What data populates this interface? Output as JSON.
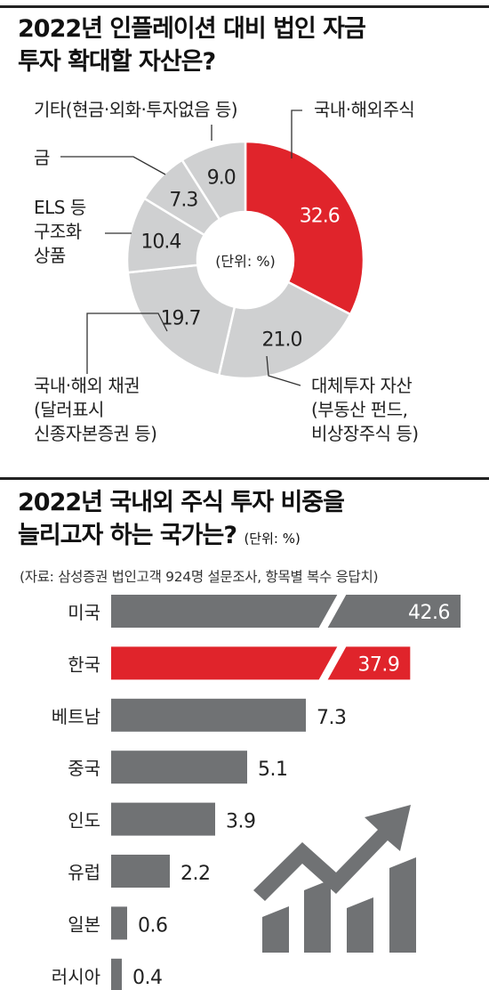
{
  "chart_data": [
    {
      "type": "pie",
      "title": "2022년 인플레이션 대비 법인 자금 투자 확대할 자산은?",
      "unit": "(단위: %)",
      "slices": [
        {
          "label": "국내·해외주식",
          "value": 32.6,
          "color": "#e0242b",
          "value_label": "32.6"
        },
        {
          "label": "대체투자 자산 (부동산 펀드, 비상장주식 등)",
          "value": 21.0,
          "color": "#cfd0d1",
          "value_label": "21.0"
        },
        {
          "label": "국내·해외 채권 (달러표시 신종자본증권 등)",
          "value": 19.7,
          "color": "#cfd0d1",
          "value_label": "19.7"
        },
        {
          "label": "ELS 등 구조화 상품",
          "value": 10.4,
          "color": "#cfd0d1",
          "value_label": "10.4"
        },
        {
          "label": "금",
          "value": 7.3,
          "color": "#cfd0d1",
          "value_label": "7.3"
        },
        {
          "label": "기타(현금·외화·투자없음 등)",
          "value": 9.0,
          "color": "#cfd0d1",
          "value_label": "9.0"
        }
      ]
    },
    {
      "type": "bar",
      "orientation": "horizontal",
      "title": "2022년 국내외 주식 투자 비중을 늘리고자 하는 국가는?",
      "unit": "(단위: %)",
      "source": "(자료: 삼성증권 법인고객 924명 설문조사, 항목별 복수 응답치)",
      "categories": [
        "미국",
        "한국",
        "베트남",
        "중국",
        "인도",
        "유럽",
        "일본",
        "러시아"
      ],
      "values": [
        42.6,
        37.9,
        7.3,
        5.1,
        3.9,
        2.2,
        0.6,
        0.4
      ],
      "value_labels": [
        "42.6",
        "37.9",
        "7.3",
        "5.1",
        "3.9",
        "2.2",
        "0.6",
        "0.4"
      ],
      "highlight": "한국",
      "colors": {
        "default": "#707274",
        "highlight": "#e0242b"
      },
      "axis_break": [
        "미국",
        "한국"
      ]
    }
  ],
  "pie": {
    "title_line1": "2022년 인플레이션 대비 법인 자금",
    "title_line2": "투자 확대할 자산은?",
    "unit": "(단위: %)",
    "labels": {
      "stocks": "국내·해외주식",
      "alt_1": "대체투자 자산",
      "alt_2": "(부동산 펀드,",
      "alt_3": "비상장주식 등)",
      "bond_1": "국내·해외 채권",
      "bond_2": "(달러표시",
      "bond_3": "신종자본증권 등)",
      "els_1": "ELS 등",
      "els_2": "구조화",
      "els_3": "상품",
      "gold": "금",
      "etc": "기타(현금·외화·투자없음 등)"
    }
  },
  "bars": {
    "title_line1": "2022년 국내외 주식 투자 비중을",
    "title_line2": "늘리고자 하는 국가는?",
    "unit": "(단위: %)",
    "source": "(자료: 삼성증권 법인고객 924명 설문조사, 항목별 복수 응답치)"
  },
  "decoration": {
    "icon": "rising-trend-bar-chart-icon",
    "color": "#707274"
  }
}
